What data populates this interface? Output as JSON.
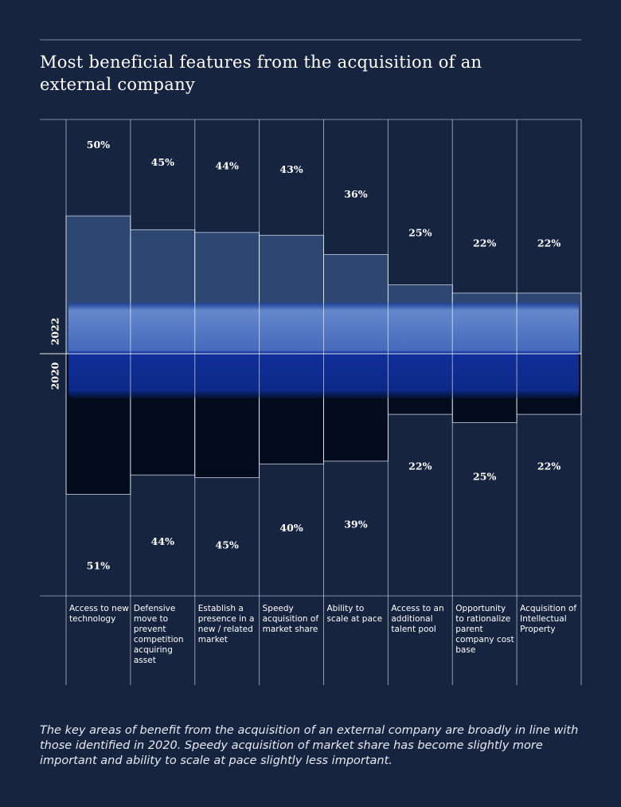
{
  "chart_data": {
    "type": "diverging-bar",
    "title": "Most beneficial features from the acquisition of an external company",
    "categories": [
      "Access to new technology",
      "Defensive move to prevent competition acquiring asset",
      "Establish a presence in a new / related market",
      "Speedy acquisition of market share",
      "Ability to scale at pace",
      "Access to an additional talent pool",
      "Opportunity to rationalize parent company cost base",
      "Acquisition of Intellectual Property"
    ],
    "series": [
      {
        "name": "2022",
        "color": "#2d4672",
        "values": [
          50,
          45,
          44,
          43,
          36,
          25,
          22,
          22
        ],
        "value_labels": [
          "50%",
          "45%",
          "44%",
          "43%",
          "36%",
          "25%",
          "22%",
          "22%"
        ]
      },
      {
        "name": "2020",
        "color": "#020c1c",
        "values": [
          51,
          44,
          45,
          40,
          39,
          22,
          25,
          22
        ],
        "value_labels": [
          "51%",
          "44%",
          "45%",
          "40%",
          "39%",
          "22%",
          "25%",
          "22%"
        ]
      }
    ],
    "ylim": [
      0,
      85
    ],
    "caption": "The key areas of benefit from the acquisition of an external company are broadly in line with those identified in 2020. Speedy acquisition of market share has become slightly more important and ability to scale at pace slightly less important."
  }
}
